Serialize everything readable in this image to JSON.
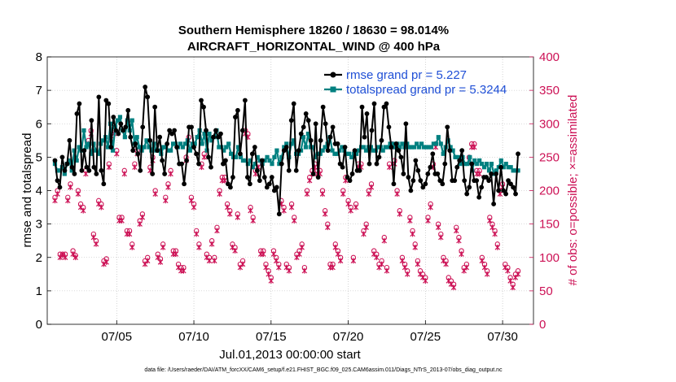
{
  "chart_data": {
    "type": "line",
    "title_line1": "Southern Hemisphere 18260 / 18630 = 98.014%",
    "title_line2": "AIRCRAFT_HORIZONTAL_WIND @ 400 hPa",
    "xlabel": "Jul.01,2013 00:00:00 start",
    "ylabel_left": "rmse and totalspread",
    "ylabel_right": "# of obs: o=possible; ×=assimilated",
    "footer": "data file: /Users/raeder/DAI/ATM_forcXX/CAM6_setup/f.e21.FHIST_BGC.f09_025.CAM6assim.011/Diags_NTrS_2013-07/obs_diag_output.nc",
    "xlim": [
      0.5,
      32.0
    ],
    "ylim_left": [
      0,
      8
    ],
    "ylim_right": [
      0,
      400
    ],
    "xticks": [
      5,
      10,
      15,
      20,
      25,
      30
    ],
    "xtick_labels": [
      "07/05",
      "07/10",
      "07/15",
      "07/20",
      "07/25",
      "07/30"
    ],
    "yticks_left": [
      0,
      1,
      2,
      3,
      4,
      5,
      6,
      7,
      8
    ],
    "yticks_left_labels": [
      "0",
      "1",
      "2",
      "3",
      "4",
      "5",
      "6",
      "7",
      "8"
    ],
    "yticks_right": [
      0,
      50,
      100,
      150,
      200,
      250,
      300,
      350,
      400
    ],
    "yticks_right_labels": [
      "0",
      "50",
      "100",
      "150",
      "200",
      "250",
      "300",
      "350",
      "400"
    ],
    "legend": [
      "rmse grand pr = 5.227",
      "totalspread grand pr = 5.3244"
    ],
    "colors": {
      "rmse": "#000000",
      "spread": "#008080",
      "obs": "#cc1155"
    },
    "rmse": [
      4.9,
      4.3,
      4.1,
      5.0,
      4.6,
      4.8,
      5.5,
      4.7,
      4.5,
      6.3,
      6.6,
      4.6,
      5.2,
      4.7,
      4.6,
      6.1,
      4.7,
      4.5,
      6.8,
      4.6,
      4.2,
      6.7,
      6.6,
      5.3,
      6.2,
      5.8,
      5.7,
      6.0,
      5.8,
      5.9,
      6.4,
      5.6,
      5.2,
      5.4,
      5.1,
      4.6,
      5.9,
      7.1,
      6.8,
      5.5,
      4.5,
      6.5,
      5.2,
      5.6,
      4.9,
      4.5,
      5.4,
      5.8,
      5.7,
      5.8,
      5.3,
      4.8,
      4.8,
      4.2,
      4.9,
      5.9,
      5.9,
      5.3,
      5.1,
      4.8,
      6.7,
      6.5,
      5.8,
      5.0,
      4.7,
      5.6,
      5.8,
      5.6,
      5.7,
      4.8,
      4.9,
      4.2,
      4.1,
      4.4,
      6.2,
      6.4,
      5.1,
      5.8,
      6.7,
      4.4,
      4.2,
      5.1,
      5.3,
      4.6,
      4.3,
      4.9,
      4.4,
      4.1,
      4.2,
      4.4,
      4.0,
      4.1,
      3.3,
      4.8,
      5.2,
      5.3,
      4.6,
      6.1,
      6.6,
      4.6,
      5.2,
      5.7,
      5.9,
      6.3,
      6.1,
      5.5,
      4.5,
      6.0,
      4.4,
      5.5,
      6.5,
      6.0,
      5.2,
      5.6,
      5.9,
      5.4,
      5.4,
      4.8,
      4.7,
      5.3,
      4.4,
      4.3,
      4.5,
      5.2,
      4.6,
      4.6,
      6.5,
      5.6,
      6.3,
      4.8,
      5.8,
      6.6,
      4.8,
      5.0,
      5.5,
      6.5,
      6.6,
      5.9,
      5.3,
      4.2,
      5.4,
      5.2,
      5.0,
      4.5,
      6.0,
      4.4,
      4.0,
      4.3,
      4.9,
      4.6,
      4.3,
      4.1,
      4.2,
      4.5,
      4.7,
      5.1,
      4.5,
      4.5,
      4.3,
      4.2,
      4.8,
      5.9,
      5.2,
      4.3,
      4.3,
      4.7,
      4.9,
      5.2,
      4.3,
      3.9,
      4.1,
      4.8,
      4.3,
      4.3,
      3.8,
      4.1,
      4.4,
      4.4,
      4.3,
      4.5,
      3.6,
      4.5,
      4.0,
      4.7,
      4.0,
      3.9,
      4.3,
      4.2,
      4.1,
      3.9,
      5.1
    ],
    "spread": [
      4.8,
      4.6,
      4.6,
      4.7,
      4.5,
      4.8,
      4.9,
      4.6,
      5.2,
      4.9,
      5.3,
      5.2,
      5.8,
      5.3,
      5.4,
      5.1,
      5.4,
      5.2,
      5.1,
      5.4,
      5.5,
      5.6,
      5.3,
      6.0,
      5.2,
      5.9,
      6.1,
      6.2,
      5.8,
      5.6,
      6.1,
      5.8,
      6.1,
      5.4,
      5.6,
      5.3,
      5.2,
      5.3,
      5.5,
      5.3,
      5.2,
      5.4,
      5.2,
      5.2,
      5.1,
      5.3,
      5.3,
      5.2,
      5.2,
      5.4,
      5.4,
      5.3,
      5.4,
      5.3,
      5.4,
      5.5,
      5.2,
      5.4,
      5.4,
      5.6,
      5.8,
      5.4,
      5.7,
      5.2,
      5.7,
      5.5,
      5.6,
      5.8,
      5.3,
      5.3,
      5.2,
      5.3,
      5.4,
      5.1,
      5.0,
      5.0,
      5.3,
      5.0,
      4.9,
      4.9,
      4.8,
      4.9,
      4.7,
      4.8,
      5.0,
      4.9,
      4.8,
      4.9,
      5.0,
      4.9,
      4.8,
      5.0,
      5.2,
      4.8,
      5.0,
      5.3,
      5.4,
      5.0,
      5.4,
      5.5,
      5.1,
      5.1,
      5.2,
      5.6,
      5.3,
      5.7,
      5.3,
      5.3,
      5.0,
      5.1,
      5.1,
      5.2,
      5.3,
      5.4,
      5.6,
      5.2,
      5.1,
      5.1,
      5.2,
      5.3,
      5.2,
      5.1,
      5.1,
      5.0,
      5.1,
      5.1,
      5.2,
      5.3,
      5.3,
      5.2,
      5.3,
      5.3,
      5.2,
      5.2,
      5.3,
      5.3,
      5.2,
      5.3,
      5.3,
      5.4,
      5.4,
      5.3,
      5.4,
      5.3,
      5.4,
      5.3,
      5.4,
      5.3,
      5.3,
      5.3,
      5.4,
      5.3,
      5.4,
      5.3,
      5.3,
      5.3,
      5.3,
      5.4,
      5.4,
      5.6,
      5.4,
      5.1,
      5.3,
      5.5,
      5.3,
      5.2,
      5.0,
      5.0,
      4.8,
      5.0,
      4.8,
      4.8,
      5.0,
      4.6,
      4.9,
      4.8,
      4.9,
      4.8,
      4.7,
      4.8,
      4.6,
      4.8,
      4.5,
      4.6,
      4.7,
      4.9,
      4.7,
      4.8,
      4.7,
      4.7,
      4.6,
      4.6,
      4.6
    ],
    "obs_possible": [
      190,
      200,
      105,
      105,
      105,
      190,
      210,
      110,
      103,
      200,
      180,
      175,
      230,
      275,
      290,
      135,
      125,
      185,
      180,
      95,
      98,
      240,
      277,
      290,
      260,
      160,
      160,
      230,
      140,
      140,
      120,
      240,
      260,
      155,
      165,
      95,
      100,
      235,
      250,
      200,
      105,
      98,
      120,
      190,
      210,
      230,
      110,
      110,
      90,
      85,
      85,
      250,
      280,
      190,
      180,
      140,
      120,
      240,
      255,
      105,
      100,
      125,
      100,
      145,
      200,
      220,
      220,
      180,
      170,
      120,
      115,
      165,
      90,
      95,
      290,
      285,
      175,
      160,
      230,
      240,
      110,
      110,
      90,
      80,
      70,
      110,
      100,
      90,
      185,
      175,
      90,
      85,
      180,
      160,
      105,
      110,
      120,
      85,
      200,
      220,
      230,
      240,
      230,
      230,
      200,
      170,
      150,
      90,
      90,
      120,
      110,
      100,
      200,
      220,
      185,
      175,
      100,
      180,
      240,
      240,
      140,
      150,
      200,
      210,
      110,
      105,
      90,
      95,
      130,
      85,
      240,
      270,
      245,
      200,
      170,
      100,
      90,
      80,
      160,
      140,
      120,
      95,
      80,
      75,
      70,
      160,
      180,
      240,
      270,
      150,
      135,
      100,
      95,
      70,
      65,
      60,
      145,
      130,
      110,
      85,
      90,
      250,
      270,
      270,
      230,
      230,
      100,
      90,
      80,
      160,
      150,
      140,
      120,
      200,
      210,
      90,
      85,
      70,
      60,
      75,
      80
    ],
    "obs_assimilated": [
      185,
      195,
      100,
      103,
      100,
      185,
      205,
      105,
      100,
      195,
      175,
      170,
      225,
      270,
      285,
      130,
      120,
      180,
      175,
      90,
      93,
      235,
      270,
      285,
      255,
      155,
      155,
      225,
      135,
      135,
      115,
      235,
      255,
      150,
      160,
      90,
      95,
      230,
      245,
      195,
      100,
      93,
      115,
      185,
      205,
      225,
      105,
      105,
      85,
      80,
      80,
      245,
      275,
      185,
      175,
      135,
      115,
      235,
      250,
      100,
      95,
      120,
      95,
      140,
      195,
      215,
      215,
      175,
      165,
      115,
      110,
      160,
      85,
      90,
      285,
      280,
      170,
      155,
      225,
      235,
      105,
      105,
      85,
      75,
      65,
      105,
      95,
      85,
      180,
      170,
      85,
      80,
      175,
      155,
      100,
      105,
      115,
      80,
      195,
      215,
      225,
      235,
      225,
      225,
      195,
      165,
      145,
      85,
      85,
      115,
      105,
      95,
      195,
      215,
      180,
      170,
      95,
      175,
      235,
      235,
      135,
      145,
      195,
      205,
      105,
      100,
      85,
      90,
      125,
      80,
      235,
      265,
      240,
      195,
      165,
      95,
      85,
      75,
      155,
      135,
      115,
      90,
      75,
      70,
      65,
      155,
      175,
      235,
      265,
      145,
      130,
      95,
      90,
      65,
      60,
      55,
      140,
      125,
      105,
      80,
      85,
      245,
      265,
      265,
      225,
      225,
      95,
      85,
      75,
      155,
      145,
      135,
      115,
      195,
      205,
      85,
      80,
      65,
      55,
      70,
      75
    ]
  }
}
